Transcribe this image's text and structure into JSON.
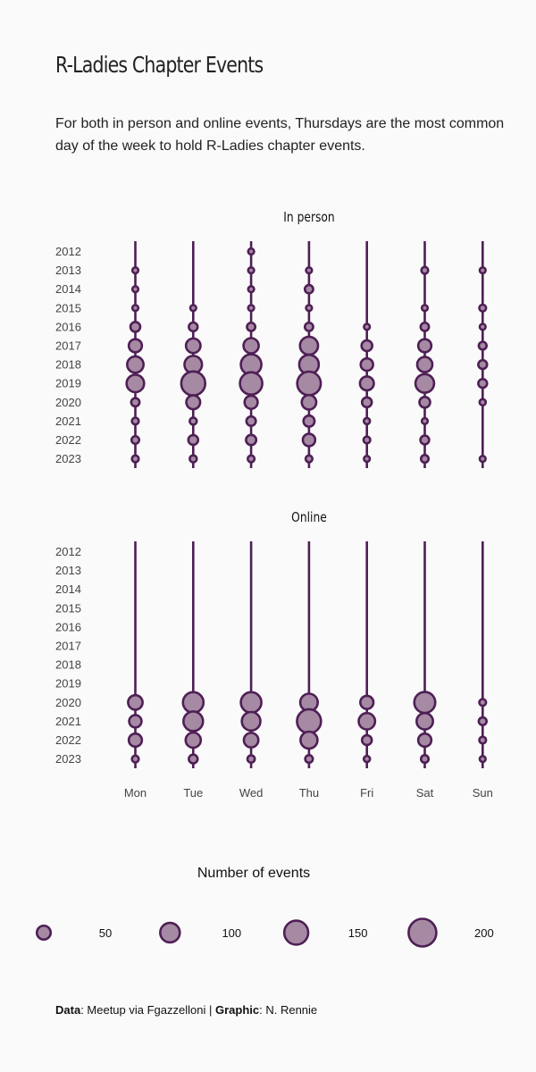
{
  "title": "R-Ladies Chapter Events",
  "subtitle": "For both in person and online events, Thursdays are the most common day of the week to hold R-Ladies chapter events.",
  "caption": {
    "data_label": "Data",
    "data_text": ": Meetup via Fgazzelloni | ",
    "graphic_label": "Graphic",
    "graphic_text": ": N. Rennie"
  },
  "colors": {
    "fill": "#a68aa4",
    "stroke": "#4e1f55",
    "background": "#fafafa"
  },
  "chart_data": {
    "type": "scatter",
    "encoding": "bubble size = number of events",
    "days": [
      "Mon",
      "Tue",
      "Wed",
      "Thu",
      "Fri",
      "Sat",
      "Sun"
    ],
    "years": [
      2012,
      2013,
      2014,
      2015,
      2016,
      2017,
      2018,
      2019,
      2020,
      2021,
      2022,
      2023
    ],
    "panels": [
      {
        "title": "In person",
        "counts": {
          "Mon": [
            0,
            4,
            6,
            6,
            25,
            45,
            70,
            80,
            18,
            12,
            15,
            12
          ],
          "Tue": [
            0,
            0,
            0,
            7,
            20,
            55,
            80,
            150,
            50,
            13,
            25,
            13
          ],
          "Wed": [
            4,
            5,
            6,
            4,
            18,
            60,
            110,
            130,
            45,
            23,
            27,
            12
          ],
          "Thu": [
            0,
            4,
            18,
            7,
            18,
            85,
            100,
            145,
            55,
            32,
            40,
            12
          ],
          "Fri": [
            0,
            0,
            0,
            0,
            8,
            30,
            40,
            50,
            25,
            10,
            12,
            9
          ],
          "Sat": [
            0,
            12,
            0,
            8,
            18,
            45,
            60,
            90,
            30,
            6,
            20,
            15
          ],
          "Sun": [
            0,
            4,
            0,
            12,
            5,
            16,
            20,
            20,
            10,
            0,
            0,
            6
          ]
        }
      },
      {
        "title": "Online",
        "counts": {
          "Mon": [
            0,
            0,
            0,
            0,
            0,
            0,
            0,
            0,
            55,
            40,
            45,
            12
          ],
          "Tue": [
            0,
            0,
            0,
            0,
            0,
            0,
            0,
            0,
            110,
            100,
            60,
            20
          ],
          "Wed": [
            0,
            0,
            0,
            0,
            0,
            0,
            0,
            0,
            110,
            90,
            55,
            14
          ],
          "Thu": [
            0,
            0,
            0,
            0,
            0,
            0,
            0,
            0,
            80,
            150,
            75,
            15
          ],
          "Fri": [
            0,
            0,
            0,
            0,
            0,
            0,
            0,
            0,
            45,
            70,
            25,
            10
          ],
          "Sat": [
            0,
            0,
            0,
            0,
            0,
            0,
            0,
            0,
            115,
            70,
            45,
            15
          ],
          "Sun": [
            0,
            0,
            0,
            0,
            0,
            0,
            0,
            0,
            12,
            16,
            12,
            5
          ]
        }
      }
    ],
    "legend": {
      "title": "Number of events",
      "values": [
        50,
        100,
        150,
        200
      ],
      "position": "bottom"
    },
    "size_max_count": 200
  }
}
